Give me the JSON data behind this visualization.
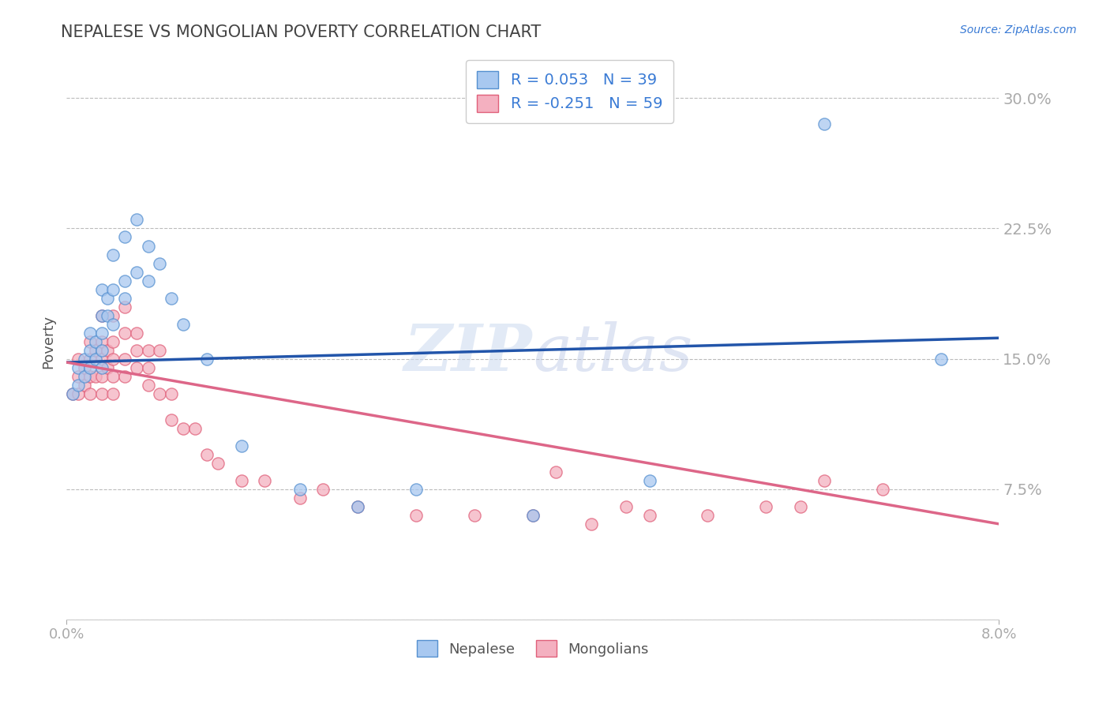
{
  "title": "NEPALESE VS MONGOLIAN POVERTY CORRELATION CHART",
  "source": "Source: ZipAtlas.com",
  "ylabel": "Poverty",
  "yticks": [
    0.0,
    0.075,
    0.15,
    0.225,
    0.3
  ],
  "ytick_labels": [
    "",
    "7.5%",
    "15.0%",
    "22.5%",
    "30.0%"
  ],
  "xtick_labels": [
    "0.0%",
    "8.0%"
  ],
  "xlim": [
    0.0,
    0.08
  ],
  "ylim": [
    0.0,
    0.32
  ],
  "nepalese_R": 0.053,
  "nepalese_N": 39,
  "mongolians_R": -0.251,
  "mongolians_N": 59,
  "nepalese_color": "#a8c8f0",
  "mongolians_color": "#f4b0c0",
  "nepalese_edge_color": "#5590d0",
  "mongolians_edge_color": "#e0607a",
  "nepalese_line_color": "#2255aa",
  "mongolians_line_color": "#dd6688",
  "legend_text_color": "#3a7bd5",
  "watermark": "ZIPAtlas",
  "background_color": "#ffffff",
  "grid_color": "#bbbbbb",
  "title_color": "#444444",
  "nepalese_x": [
    0.0005,
    0.001,
    0.001,
    0.0015,
    0.0015,
    0.002,
    0.002,
    0.002,
    0.0025,
    0.0025,
    0.003,
    0.003,
    0.003,
    0.003,
    0.003,
    0.0035,
    0.0035,
    0.004,
    0.004,
    0.004,
    0.005,
    0.005,
    0.005,
    0.006,
    0.006,
    0.007,
    0.007,
    0.008,
    0.009,
    0.01,
    0.012,
    0.015,
    0.02,
    0.025,
    0.03,
    0.04,
    0.05,
    0.065,
    0.075
  ],
  "nepalese_y": [
    0.13,
    0.135,
    0.145,
    0.14,
    0.15,
    0.145,
    0.155,
    0.165,
    0.15,
    0.16,
    0.145,
    0.155,
    0.165,
    0.175,
    0.19,
    0.175,
    0.185,
    0.17,
    0.19,
    0.21,
    0.185,
    0.195,
    0.22,
    0.2,
    0.23,
    0.195,
    0.215,
    0.205,
    0.185,
    0.17,
    0.15,
    0.1,
    0.075,
    0.065,
    0.075,
    0.06,
    0.08,
    0.285,
    0.15
  ],
  "mongolians_x": [
    0.0005,
    0.001,
    0.001,
    0.001,
    0.0015,
    0.0015,
    0.002,
    0.002,
    0.002,
    0.002,
    0.0025,
    0.0025,
    0.003,
    0.003,
    0.003,
    0.003,
    0.003,
    0.0035,
    0.0035,
    0.004,
    0.004,
    0.004,
    0.004,
    0.004,
    0.005,
    0.005,
    0.005,
    0.005,
    0.006,
    0.006,
    0.006,
    0.007,
    0.007,
    0.007,
    0.008,
    0.008,
    0.009,
    0.009,
    0.01,
    0.011,
    0.012,
    0.013,
    0.015,
    0.017,
    0.02,
    0.022,
    0.025,
    0.03,
    0.035,
    0.04,
    0.042,
    0.045,
    0.048,
    0.05,
    0.055,
    0.06,
    0.063,
    0.065,
    0.07
  ],
  "mongolians_y": [
    0.13,
    0.13,
    0.14,
    0.15,
    0.135,
    0.145,
    0.13,
    0.14,
    0.15,
    0.16,
    0.14,
    0.155,
    0.13,
    0.14,
    0.15,
    0.16,
    0.175,
    0.145,
    0.155,
    0.13,
    0.14,
    0.15,
    0.16,
    0.175,
    0.14,
    0.15,
    0.165,
    0.18,
    0.145,
    0.155,
    0.165,
    0.135,
    0.145,
    0.155,
    0.13,
    0.155,
    0.115,
    0.13,
    0.11,
    0.11,
    0.095,
    0.09,
    0.08,
    0.08,
    0.07,
    0.075,
    0.065,
    0.06,
    0.06,
    0.06,
    0.085,
    0.055,
    0.065,
    0.06,
    0.06,
    0.065,
    0.065,
    0.08,
    0.075
  ],
  "blue_line_x0": 0.0,
  "blue_line_x1": 0.08,
  "blue_line_y0": 0.148,
  "blue_line_y1": 0.162,
  "pink_line_x0": 0.0,
  "pink_line_x1": 0.08,
  "pink_line_y0": 0.148,
  "pink_line_y1": 0.055
}
